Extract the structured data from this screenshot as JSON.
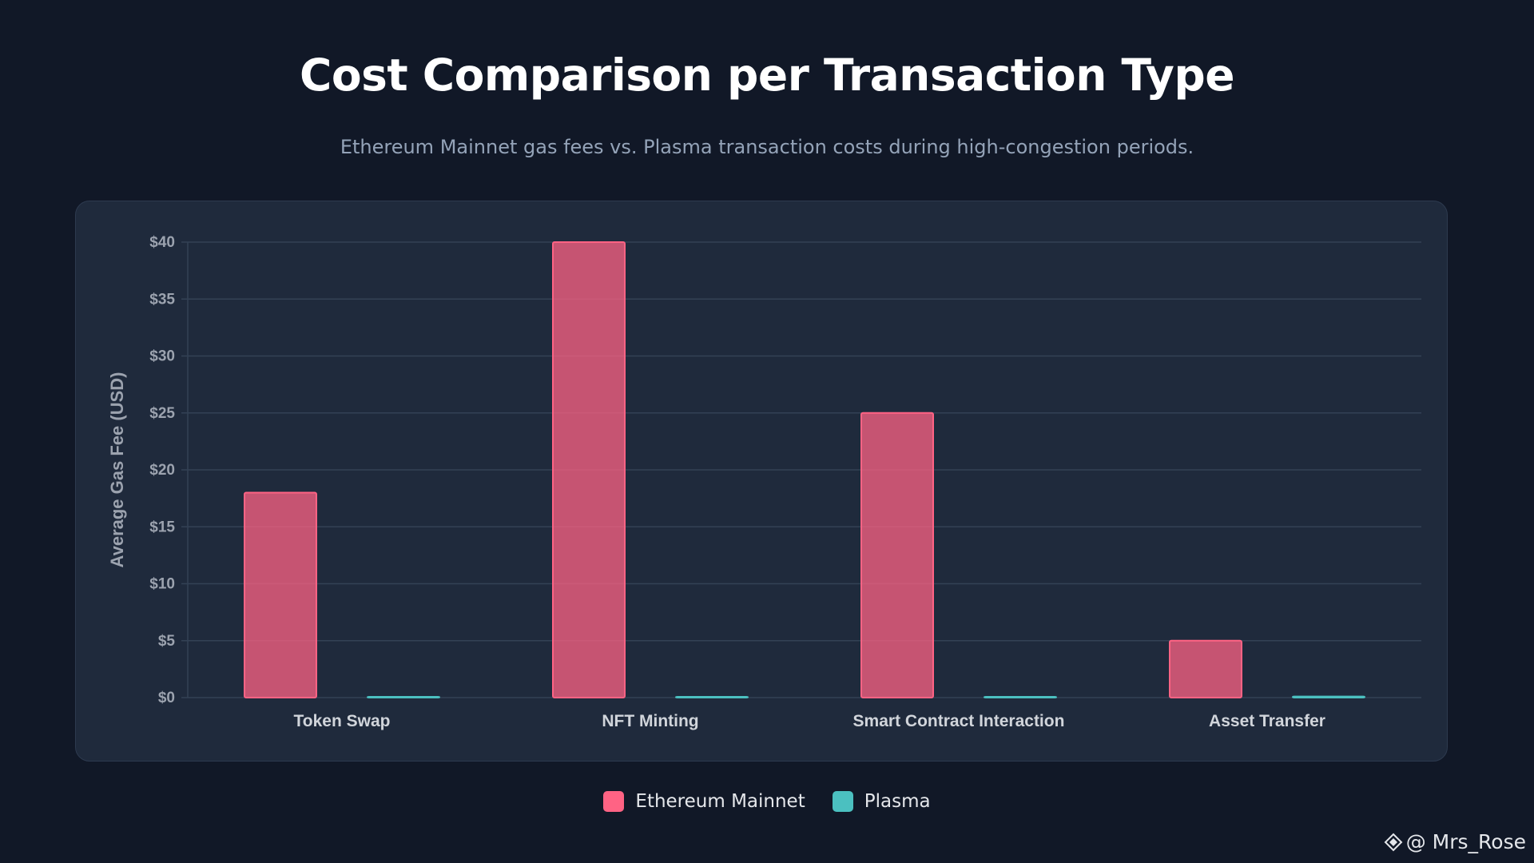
{
  "chart_data": {
    "type": "bar",
    "title": "Cost Comparison per Transaction Type",
    "subtitle": "Ethereum Mainnet gas fees vs. Plasma transaction costs during high-congestion periods.",
    "ylabel": "Average Gas Fee (USD)",
    "xlabel": "",
    "categories": [
      "Token Swap",
      "NFT Minting",
      "Smart Contract Interaction",
      "Asset Transfer"
    ],
    "series": [
      {
        "name": "Ethereum Mainnet",
        "color": "#ff6384",
        "values": [
          18,
          40,
          25,
          5
        ]
      },
      {
        "name": "Plasma",
        "color": "#4bc0c0",
        "values": [
          0.05,
          0.01,
          0.01,
          0.1
        ]
      }
    ],
    "ylim": [
      0,
      40
    ],
    "yticks": [
      0,
      5,
      10,
      15,
      20,
      25,
      30,
      35,
      40
    ],
    "ytick_labels": [
      "$0",
      "$5",
      "$10",
      "$15",
      "$20",
      "$25",
      "$30",
      "$35",
      "$40"
    ],
    "grid": true,
    "legend_position": "bottom-center"
  },
  "watermark": {
    "handle": "@ Mrs_Rose",
    "icon": "binance-square-icon"
  }
}
